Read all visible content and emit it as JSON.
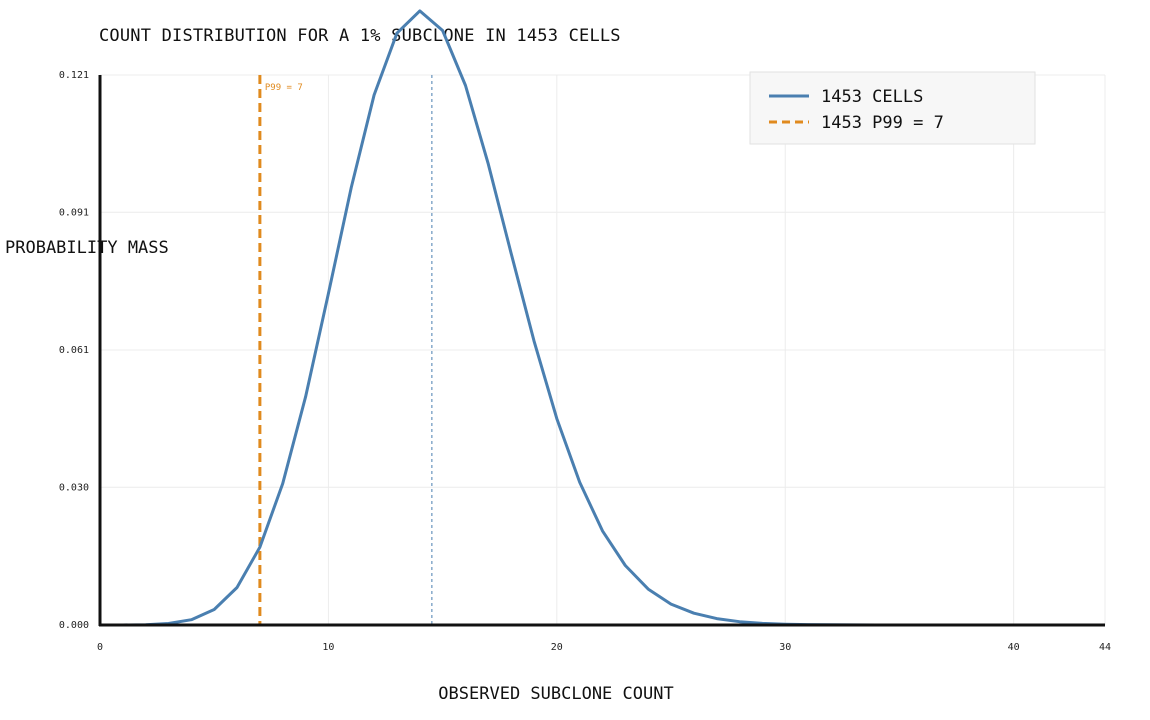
{
  "chart_data": {
    "type": "line",
    "title": "COUNT DISTRIBUTION FOR A 1% SUBCLONE IN 1453 CELLS",
    "xlabel": "OBSERVED SUBCLONE COUNT",
    "ylabel": "PROBABILITY MASS",
    "xlim": [
      0,
      44
    ],
    "ylim": [
      0,
      0.121
    ],
    "x_ticks": [
      "0",
      "10",
      "20",
      "30",
      "40",
      "44"
    ],
    "x_tick_values": [
      0,
      10,
      20,
      30,
      40,
      44
    ],
    "y_ticks": [
      "0.000",
      "0.030",
      "0.061",
      "0.091",
      "0.121"
    ],
    "y_tick_values": [
      0,
      0.0303,
      0.0605,
      0.0908,
      0.121
    ],
    "grid": true,
    "legend_position": "top-right",
    "colors": {
      "series": "#4a7fb0",
      "threshold": "#e08a1e",
      "mean": "#4a7fb0"
    },
    "series": [
      {
        "name": "1453 CELLS",
        "x": [
          0,
          1,
          2,
          3,
          4,
          5,
          6,
          7,
          8,
          9,
          10,
          11,
          12,
          13,
          14,
          15,
          16,
          17,
          18,
          19,
          20,
          21,
          22,
          23,
          24,
          25,
          26,
          27,
          28,
          29,
          30,
          31,
          32,
          33,
          34,
          35,
          36,
          37,
          38,
          39,
          40,
          41,
          42,
          43,
          44
        ],
        "values": [
          1e-06,
          1e-05,
          6e-05,
          0.00032,
          0.00117,
          0.00341,
          0.00826,
          0.01713,
          0.0311,
          0.0502,
          0.0729,
          0.0963,
          0.1166,
          0.1302,
          0.1351,
          0.1308,
          0.1187,
          0.1014,
          0.0818,
          0.0625,
          0.0454,
          0.0314,
          0.0207,
          0.0131,
          0.0079,
          0.0046,
          0.0026,
          0.0014,
          0.00072,
          0.00036,
          0.00017,
          8e-05,
          4e-05,
          2e-05,
          1e-05,
          0,
          0,
          0,
          0,
          0,
          0,
          0,
          0,
          0,
          0
        ]
      }
    ],
    "threshold": {
      "legend": "1453  P99 = 7",
      "label": "P99 = 7",
      "x": 7
    },
    "mean_line": {
      "x": 14.53
    }
  }
}
